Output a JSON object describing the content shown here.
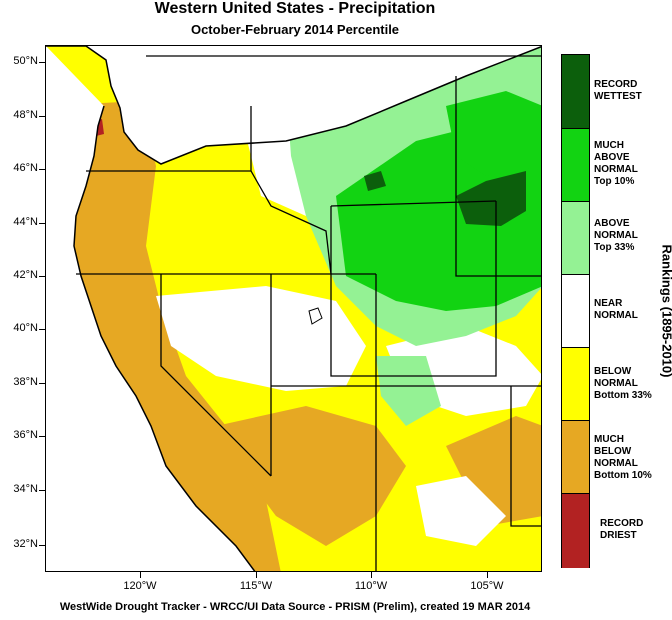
{
  "title": "Western United States - Precipitation",
  "subtitle": "October-February 2014 Percentile",
  "footer": "WestWide Drought Tracker - WRCC/UI  Data Source - PRISM (Prelim), created 19 MAR 2014",
  "legend": {
    "axis_title": "Rankings (1895-2010)",
    "categories": [
      {
        "label": "RECORD WETTEST",
        "color": "#0c5f0c"
      },
      {
        "label": "MUCH ABOVE NORMAL Top 10%",
        "color": "#12d312"
      },
      {
        "label": "ABOVE NORMAL Top 33%",
        "color": "#94f294"
      },
      {
        "label": "NEAR NORMAL",
        "color": "#ffffff"
      },
      {
        "label": "BELOW NORMAL Bottom 33%",
        "color": "#ffff00"
      },
      {
        "label": "MUCH BELOW NORMAL Bottom 10%",
        "color": "#e6a823"
      },
      {
        "label": "RECORD DRIEST",
        "color": "#b22222"
      }
    ]
  },
  "latitude_labels": [
    "50°N",
    "48°N",
    "46°N",
    "44°N",
    "42°N",
    "40°N",
    "38°N",
    "36°N",
    "34°N",
    "32°N"
  ],
  "longitude_labels": [
    "120°W",
    "115°W",
    "110°W",
    "105°W"
  ]
}
